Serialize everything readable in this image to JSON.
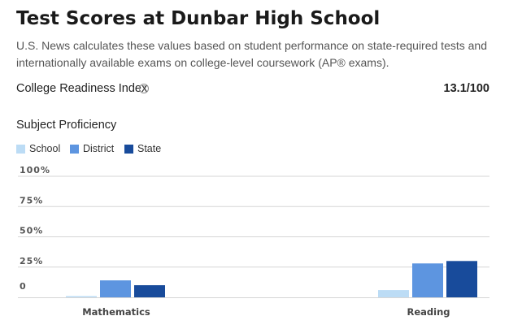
{
  "header": {
    "title": "Test Scores at Dunbar High School",
    "description": "U.S. News calculates these values based on student performance on state-required tests and internationally available exams on college-level coursework (AP® exams)."
  },
  "college_readiness": {
    "label": "College Readiness Index",
    "info_icon": "info-circle-icon",
    "info_glyph": "?",
    "value": "13.1/100"
  },
  "subject_proficiency": {
    "heading": "Subject Proficiency"
  },
  "chart_data": {
    "type": "bar",
    "categories": [
      "Mathematics",
      "Reading"
    ],
    "series": [
      {
        "name": "School",
        "color": "#bcdcf5",
        "values": [
          1,
          6
        ]
      },
      {
        "name": "District",
        "color": "#5d95e0",
        "values": [
          14,
          28
        ]
      },
      {
        "name": "State",
        "color": "#184b9b",
        "values": [
          10,
          30
        ]
      }
    ],
    "y_ticks": [
      {
        "value": 100,
        "label": "100%"
      },
      {
        "value": 75,
        "label": "75%"
      },
      {
        "value": 50,
        "label": "50%"
      },
      {
        "value": 25,
        "label": "25%"
      },
      {
        "value": 0,
        "label": "0"
      }
    ],
    "ylim": [
      0,
      100
    ],
    "grid": true,
    "legend_position": "top-left",
    "title": "",
    "xlabel": "",
    "ylabel": ""
  }
}
